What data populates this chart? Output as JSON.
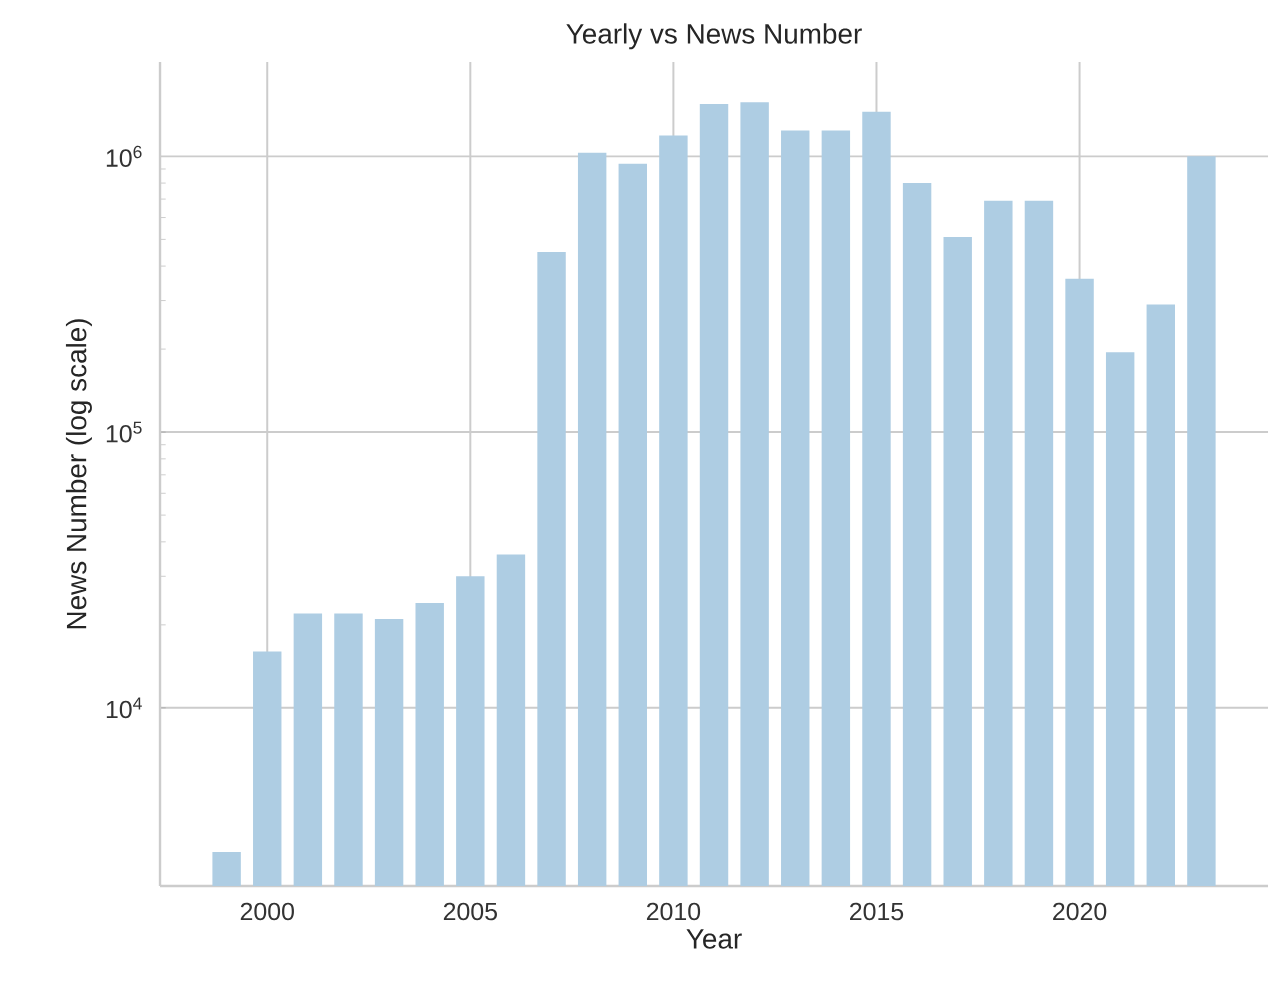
{
  "chart_data": {
    "type": "bar",
    "title": "Yearly vs News Number",
    "xlabel": "Year",
    "ylabel": "News Number (log scale)",
    "x": [
      1999,
      2000,
      2001,
      2002,
      2003,
      2004,
      2005,
      2006,
      2007,
      2008,
      2009,
      2010,
      2011,
      2012,
      2013,
      2014,
      2015,
      2016,
      2017,
      2018,
      2019,
      2020,
      2021,
      2022,
      2023
    ],
    "values": [
      3000,
      16000,
      22000,
      22000,
      21000,
      24000,
      30000,
      36000,
      450000,
      1030000,
      940000,
      1190000,
      1550000,
      1570000,
      1240000,
      1240000,
      1450000,
      800000,
      510000,
      690000,
      690000,
      360000,
      195000,
      290000,
      1000000
    ],
    "color": "#aecde3",
    "xlim": [
      1997.36,
      2024.64
    ],
    "ylim": [
      2260,
      2200000
    ],
    "xticks": [
      2000,
      2005,
      2010,
      2015,
      2020
    ],
    "yticks": [
      {
        "value": 10000,
        "label": "10$^{4}$"
      },
      {
        "value": 100000,
        "label": "10$^{5}$"
      },
      {
        "value": 1000000,
        "label": "10$^{6}$"
      }
    ],
    "log": true,
    "grid": true
  }
}
